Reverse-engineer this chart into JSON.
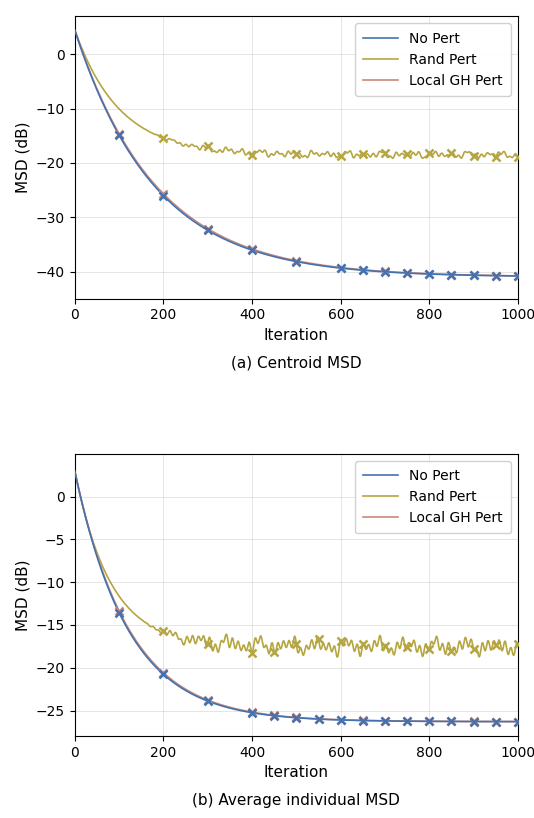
{
  "fig_width": 5.34,
  "fig_height": 8.18,
  "dpi": 100,
  "subplot_a": {
    "title": "(a) Centroid MSD",
    "ylabel": "MSD (dB)",
    "xlabel": "Iteration",
    "xlim": [
      0,
      1000
    ],
    "ylim": [
      -45,
      7
    ],
    "yticks": [
      0,
      -10,
      -20,
      -30,
      -40
    ],
    "xticks": [
      0,
      200,
      400,
      600,
      800,
      1000
    ],
    "no_pert_color": "#4472b0",
    "rand_pert_color": "#b5a642",
    "local_gh_color": "#c9877a",
    "convergence_value": -41.0,
    "rand_pert_plateau": -18.5,
    "start_value": 4.5,
    "tau_conv": 180,
    "tau_rand": 100,
    "rand_noise_std": 0.35,
    "rand_noise_freq": 0.015,
    "marker_iters_conv": [
      100,
      200,
      300,
      400,
      500,
      600,
      650,
      700,
      750,
      800,
      850,
      900,
      950,
      1000
    ],
    "marker_iters_rand": [
      200,
      300,
      400,
      500,
      600,
      650,
      700,
      750,
      800,
      850,
      900,
      950,
      1000
    ]
  },
  "subplot_b": {
    "title": "(b) Average individual MSD",
    "ylabel": "MSD (dB)",
    "xlabel": "Iteration",
    "xlim": [
      0,
      1000
    ],
    "ylim": [
      -28,
      5
    ],
    "yticks": [
      0,
      -5,
      -10,
      -15,
      -20,
      -25
    ],
    "xticks": [
      0,
      200,
      400,
      600,
      800,
      1000
    ],
    "no_pert_color": "#4472b0",
    "rand_pert_color": "#b5a642",
    "local_gh_color": "#c9877a",
    "convergence_value": -26.3,
    "rand_pert_plateau": -17.5,
    "start_value": 3.0,
    "tau_conv": 120,
    "tau_rand": 80,
    "rand_noise_std": 0.5,
    "rand_noise_freq": 0.015,
    "marker_iters_conv": [
      100,
      200,
      300,
      400,
      450,
      500,
      550,
      600,
      650,
      700,
      750,
      800,
      850,
      900,
      950,
      1000
    ],
    "marker_iters_rand": [
      200,
      300,
      400,
      450,
      500,
      550,
      600,
      650,
      700,
      750,
      800,
      850,
      900,
      950,
      1000
    ]
  },
  "legend_labels": [
    "No Pert",
    "Rand Pert",
    "Local GH Pert"
  ],
  "marker": "x",
  "markersize": 6,
  "markeredgewidth": 1.8,
  "linewidth": 1.2,
  "grid_alpha": 0.6,
  "grid_color": "#cccccc"
}
